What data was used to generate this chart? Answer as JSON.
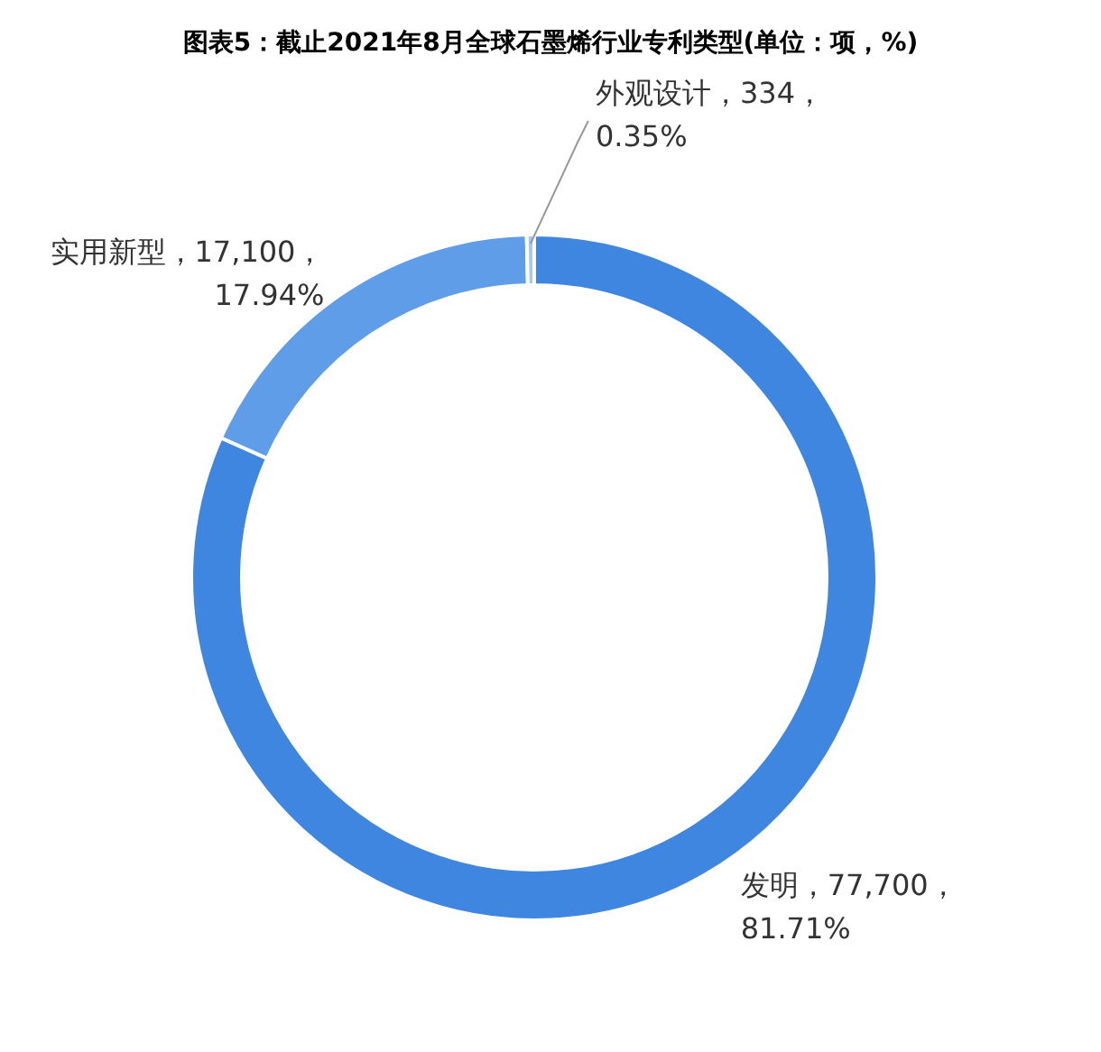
{
  "chart_data": {
    "type": "donut",
    "title": "图表5：截止2021年8月全球石墨烯行业专利类型(单位：项，%)",
    "categories": [
      "发明",
      "实用新型",
      "外观设计"
    ],
    "values": [
      77700,
      17100,
      334
    ],
    "colors": [
      "#3f86e0",
      "#5f9de8",
      "#a9c8f0"
    ],
    "value_labels": [
      "，77,700，81.71%",
      "，17,100，17.94%",
      "，334，0.35%"
    ]
  }
}
